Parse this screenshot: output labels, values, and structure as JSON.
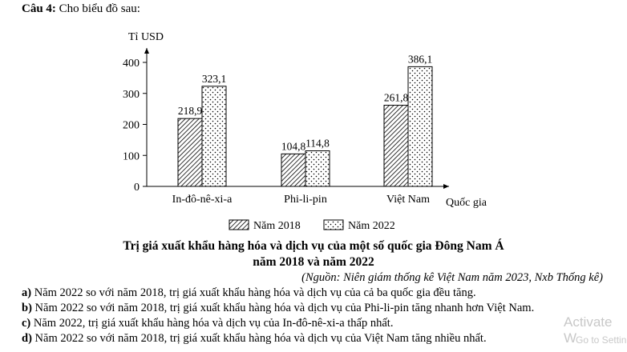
{
  "question": {
    "number": "Câu 4:",
    "intro": "Cho biểu đồ sau:"
  },
  "chart_data": {
    "type": "bar",
    "ylabel": "Tỉ USD",
    "xlabel": "Quốc gia",
    "ylim": [
      0,
      400
    ],
    "yticks": [
      0,
      100,
      200,
      300,
      400
    ],
    "categories": [
      "In-đô-nê-xi-a",
      "Phi-li-pin",
      "Việt Nam"
    ],
    "series": [
      {
        "name": "Năm 2018",
        "values": [
          218.9,
          104.8,
          261.8
        ],
        "labels": [
          "218,9",
          "104,8",
          "261,8"
        ],
        "pattern": "hatch"
      },
      {
        "name": "Năm 2022",
        "values": [
          323.1,
          114.8,
          386.1
        ],
        "labels": [
          "323,1",
          "114,8",
          "386,1"
        ],
        "pattern": "dots"
      }
    ],
    "legend_position": "bottom"
  },
  "caption": {
    "line1": "Trị giá xuất khẩu hàng hóa và dịch vụ của một số quốc gia Đông Nam Á",
    "line2": "năm 2018 và năm 2022",
    "source": "(Nguồn: Niên giám thống kê Việt Nam năm 2023, Nxb Thống kê)"
  },
  "answers": [
    {
      "key": "a)",
      "text": "Năm 2022 so với năm 2018, trị giá xuất khẩu hàng hóa và dịch vụ của cả ba quốc gia đều tăng."
    },
    {
      "key": "b)",
      "text": "Năm 2022 so với năm 2018, trị giá xuất khẩu hàng hóa và dịch vụ của Phi-li-pin tăng nhanh hơn Việt Nam."
    },
    {
      "key": "c)",
      "text": "Năm 2022, trị giá xuất khẩu hàng hóa và dịch vụ của In-đô-nê-xi-a thấp nhất."
    },
    {
      "key": "d)",
      "text": "Năm 2022 so với năm 2018, trị giá xuất khẩu hàng hóa và dịch vụ của Việt Nam tăng nhiều nhất."
    }
  ],
  "watermark": {
    "line1": "Activate W",
    "line2": "Go to Settin"
  }
}
